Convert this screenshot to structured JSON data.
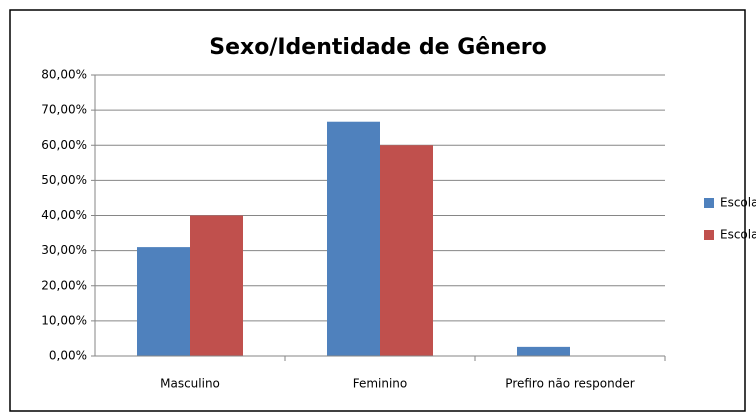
{
  "chart_data": {
    "type": "bar",
    "title": "Sexo/Identidade de Gênero",
    "categories": [
      "Masculino",
      "Feminino",
      "Prefiro não responder"
    ],
    "series": [
      {
        "name": "Escola A",
        "color": "#4f81bd",
        "values": [
          31.0,
          66.7,
          2.6
        ]
      },
      {
        "name": "Escola B",
        "color": "#c0504d",
        "values": [
          40.0,
          60.0,
          0
        ]
      }
    ],
    "ylim": [
      0,
      80
    ],
    "yticks": [
      {
        "value": 0,
        "label": "0,00%"
      },
      {
        "value": 10,
        "label": "10,00%"
      },
      {
        "value": 20,
        "label": "20,00%"
      },
      {
        "value": 30,
        "label": "30,00%"
      },
      {
        "value": 40,
        "label": "40,00%"
      },
      {
        "value": 50,
        "label": "50,00%"
      },
      {
        "value": 60,
        "label": "60,00%"
      },
      {
        "value": 70,
        "label": "70,00%"
      },
      {
        "value": 80,
        "label": "80,00%"
      }
    ],
    "grid": true,
    "legend": "right"
  }
}
